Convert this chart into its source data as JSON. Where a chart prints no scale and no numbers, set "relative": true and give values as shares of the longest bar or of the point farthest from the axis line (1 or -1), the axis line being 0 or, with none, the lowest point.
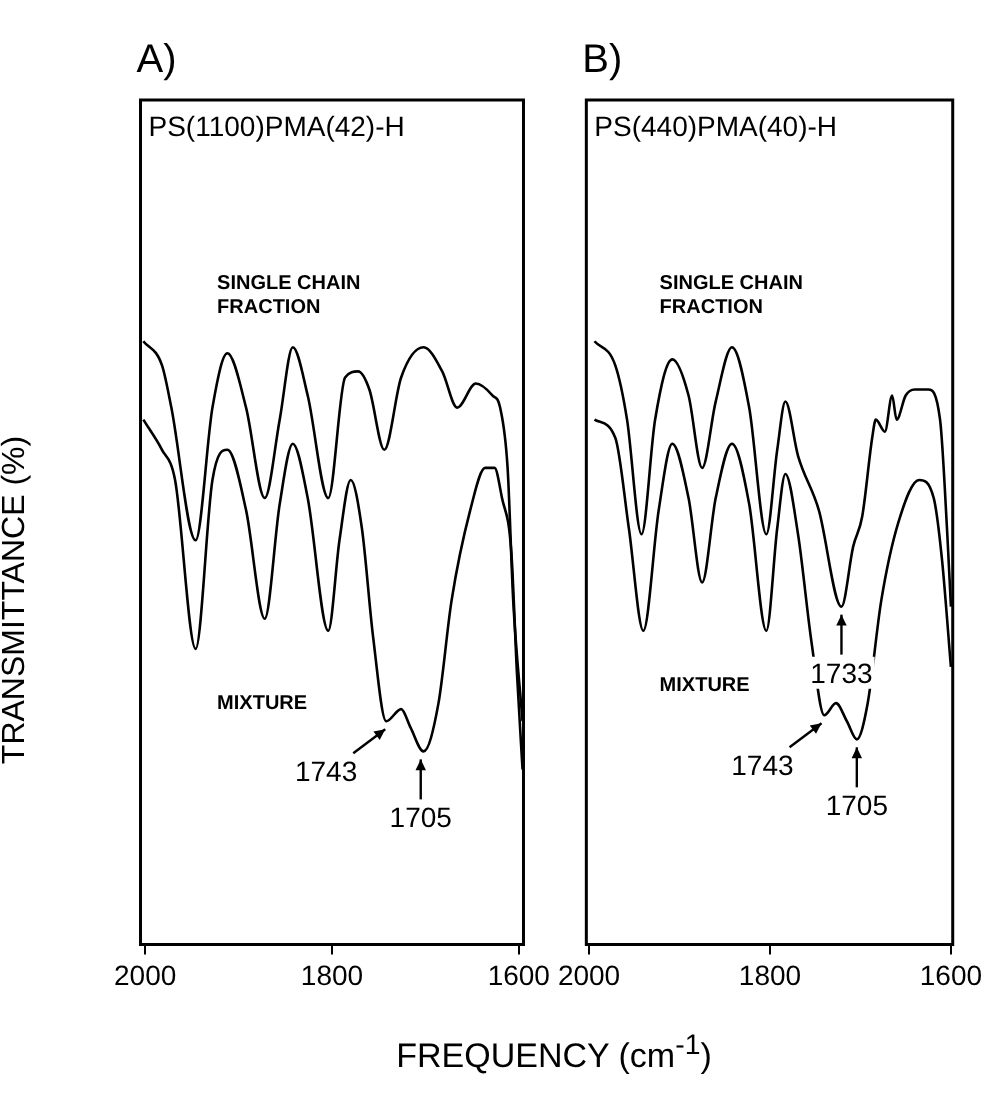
{
  "chart_data": [
    {
      "type": "line",
      "title": "A)",
      "subtitle": "PS(1100)PMA(42)-H",
      "ylabel": "TRANSMITTANCE (%)",
      "xlabel": "FREQUENCY (cm$^{-1}$)",
      "relative": true,
      "grid": false,
      "legend": false,
      "marker": "none",
      "xlim": [
        2005,
        1595
      ],
      "xticks": [
        2000,
        1800,
        1600
      ],
      "series": [
        {
          "name": "SINGLE CHAIN FRACTION",
          "color": "#000000",
          "x": [
            2002,
            1982,
            1972,
            1946,
            1928,
            1912,
            1892,
            1872,
            1856,
            1842,
            1826,
            1804,
            1786,
            1772,
            1760,
            1744,
            1726,
            1702,
            1682,
            1666,
            1646,
            1628,
            1620,
            1612,
            1606,
            1596
          ],
          "values": [
            1.0,
            0.96,
            0.89,
            0.67,
            0.89,
            0.98,
            0.89,
            0.74,
            0.87,
            0.99,
            0.91,
            0.74,
            0.94,
            0.95,
            0.92,
            0.82,
            0.94,
            0.99,
            0.95,
            0.89,
            0.93,
            0.91,
            0.89,
            0.79,
            0.57,
            0.37
          ]
        },
        {
          "name": "MIXTURE",
          "color": "#000000",
          "x": [
            2002,
            1982,
            1968,
            1946,
            1928,
            1912,
            1892,
            1872,
            1856,
            1842,
            1826,
            1804,
            1792,
            1780,
            1768,
            1756,
            1742,
            1726,
            1716,
            1702,
            1686,
            1672,
            1652,
            1636,
            1626,
            1618,
            1608,
            1602,
            1596
          ],
          "values": [
            0.87,
            0.82,
            0.77,
            0.49,
            0.77,
            0.82,
            0.72,
            0.54,
            0.73,
            0.83,
            0.74,
            0.52,
            0.67,
            0.77,
            0.69,
            0.51,
            0.37,
            0.39,
            0.36,
            0.32,
            0.4,
            0.57,
            0.72,
            0.79,
            0.79,
            0.74,
            0.65,
            0.45,
            0.29
          ]
        }
      ],
      "annotations": [
        {
          "text": "1743",
          "x": 1743,
          "y": 0.37
        },
        {
          "text": "1705",
          "x": 1705,
          "y": 0.32
        }
      ]
    },
    {
      "type": "line",
      "title": "B)",
      "subtitle": "PS(440)PMA(40)-H",
      "relative": true,
      "grid": false,
      "legend": false,
      "marker": "none",
      "xlim": [
        2003,
        1598
      ],
      "xticks": [
        2000,
        1800,
        1600
      ],
      "series": [
        {
          "name": "SINGLE CHAIN FRACTION",
          "color": "#000000",
          "x": [
            1994,
            1971,
            1958,
            1942,
            1927,
            1908,
            1890,
            1875,
            1860,
            1842,
            1823,
            1804,
            1792,
            1783,
            1769,
            1746,
            1721,
            1708,
            1698,
            1687,
            1683,
            1673,
            1665,
            1660,
            1650,
            1640,
            1625,
            1612,
            1604,
            1600
          ],
          "values": [
            1.0,
            0.96,
            0.87,
            0.68,
            0.87,
            0.97,
            0.91,
            0.79,
            0.9,
            0.99,
            0.89,
            0.68,
            0.82,
            0.9,
            0.81,
            0.72,
            0.56,
            0.66,
            0.71,
            0.84,
            0.87,
            0.85,
            0.91,
            0.87,
            0.91,
            0.92,
            0.92,
            0.87,
            0.68,
            0.56
          ]
        },
        {
          "name": "MIXTURE",
          "color": "#000000",
          "x": [
            1994,
            1971,
            1956,
            1940,
            1923,
            1908,
            1890,
            1875,
            1860,
            1842,
            1823,
            1804,
            1792,
            1783,
            1769,
            1754,
            1740,
            1727,
            1715,
            1704,
            1692,
            1677,
            1658,
            1635,
            1619,
            1610,
            1600
          ],
          "values": [
            0.87,
            0.84,
            0.69,
            0.52,
            0.72,
            0.83,
            0.74,
            0.6,
            0.74,
            0.83,
            0.73,
            0.52,
            0.69,
            0.78,
            0.68,
            0.5,
            0.38,
            0.4,
            0.37,
            0.34,
            0.4,
            0.57,
            0.7,
            0.77,
            0.74,
            0.64,
            0.46
          ]
        }
      ],
      "annotations": [
        {
          "text": "1743",
          "x": 1743,
          "y": 0.38
        },
        {
          "text": "1733",
          "x": 1721,
          "y": 0.56
        },
        {
          "text": "1705",
          "x": 1704,
          "y": 0.34
        }
      ]
    }
  ]
}
